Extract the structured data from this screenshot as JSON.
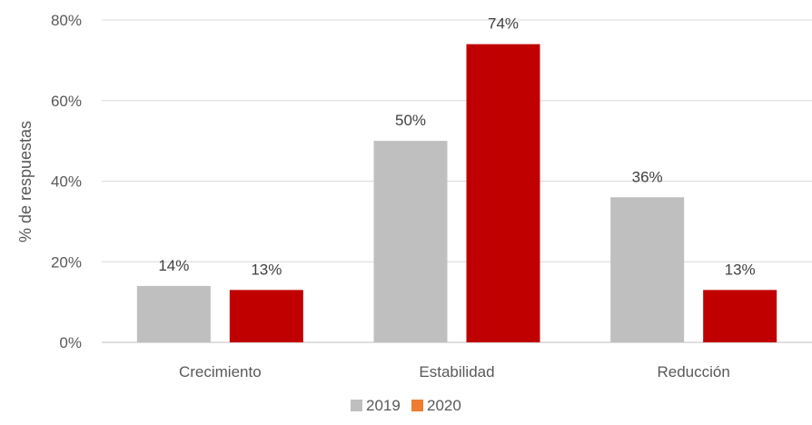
{
  "chart_data": {
    "type": "bar",
    "categories": [
      "Crecimiento",
      "Estabilidad",
      "Reducción"
    ],
    "series": [
      {
        "name": "2019",
        "values": [
          14,
          50,
          36
        ],
        "labels": [
          "14%",
          "50%",
          "36%"
        ],
        "color": "#bfbfbf"
      },
      {
        "name": "2020",
        "values": [
          13,
          74,
          13
        ],
        "labels": [
          "13%",
          "74%",
          "13%"
        ],
        "color": "#c00000"
      }
    ],
    "legend_swatch_colors": [
      "#bfbfbf",
      "#ed7d31"
    ],
    "ylabel": "% de respuestas",
    "ylim": [
      0,
      80
    ],
    "yticks": [
      0,
      20,
      40,
      60,
      80
    ],
    "ytick_labels": [
      "0%",
      "20%",
      "40%",
      "60%",
      "80%"
    ],
    "grid": true,
    "legend_position": "bottom"
  }
}
